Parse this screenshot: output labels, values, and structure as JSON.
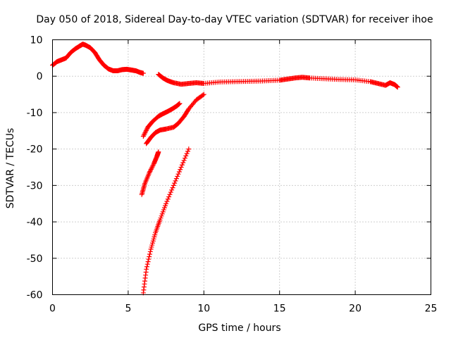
{
  "chart_data": {
    "type": "scatter",
    "title": "Day 050 of 2018, Sidereal Day-to-day VTEC variation (SDTVAR) for receiver ihoe",
    "xlabel": "GPS time / hours",
    "ylabel": "SDTVAR / TECUs",
    "xlim": [
      0,
      25
    ],
    "ylim": [
      -60,
      10
    ],
    "xticks": [
      0,
      5,
      10,
      15,
      20,
      25
    ],
    "yticks": [
      10,
      0,
      -10,
      -20,
      -30,
      -40,
      -50,
      -60
    ],
    "grid": true,
    "marker": "plus",
    "series_color": "#ff0000",
    "series": [
      {
        "name": "main-trace",
        "x": [
          0.0,
          0.3,
          0.6,
          0.9,
          1.2,
          1.5,
          1.8,
          2.0,
          2.2,
          2.5,
          2.8,
          3.1,
          3.4,
          3.7,
          4.0,
          4.3,
          4.6,
          4.9,
          5.2,
          5.5,
          5.8,
          6.0
        ],
        "y": [
          3.0,
          4.0,
          4.5,
          5.0,
          6.5,
          7.5,
          8.3,
          8.8,
          8.5,
          7.8,
          6.5,
          4.5,
          3.0,
          2.0,
          1.5,
          1.5,
          1.8,
          1.9,
          1.7,
          1.5,
          1.0,
          0.8
        ]
      },
      {
        "name": "main-trace-2",
        "x": [
          7.0,
          7.3,
          7.6,
          8.0,
          8.5,
          9.0,
          9.5,
          10.0,
          11.0,
          12.0,
          13.0,
          14.0,
          15.0,
          15.5,
          16.0,
          16.5,
          17.0,
          18.0,
          19.0,
          20.0,
          21.0,
          21.5,
          22.0,
          22.3,
          22.6,
          22.8
        ],
        "y": [
          0.5,
          -0.5,
          -1.2,
          -1.8,
          -2.2,
          -2.0,
          -1.8,
          -2.0,
          -1.6,
          -1.5,
          -1.4,
          -1.3,
          -1.1,
          -0.8,
          -0.5,
          -0.3,
          -0.5,
          -0.7,
          -0.9,
          -1.0,
          -1.5,
          -2.0,
          -2.5,
          -1.8,
          -2.3,
          -3.0
        ]
      },
      {
        "name": "arc-1",
        "x": [
          6.0,
          6.3,
          6.6,
          7.0,
          7.3,
          7.6,
          7.9,
          8.2,
          8.4
        ],
        "y": [
          -16.5,
          -14.0,
          -12.5,
          -11.0,
          -10.3,
          -9.7,
          -9.0,
          -8.2,
          -7.5
        ]
      },
      {
        "name": "arc-2",
        "x": [
          6.2,
          6.5,
          6.8,
          7.1,
          7.5,
          8.0,
          8.3,
          8.7,
          9.0,
          9.5,
          10.0
        ],
        "y": [
          -18.5,
          -16.8,
          -15.5,
          -14.8,
          -14.5,
          -14.0,
          -13.0,
          -11.0,
          -9.0,
          -6.5,
          -5.0
        ]
      },
      {
        "name": "arc-3",
        "x": [
          5.9,
          6.1,
          6.4,
          6.7,
          6.9,
          7.0
        ],
        "y": [
          -32.5,
          -29.5,
          -26.5,
          -24.0,
          -22.0,
          -20.8
        ]
      },
      {
        "name": "arc-4",
        "x": [
          6.0,
          6.2,
          6.5,
          6.8,
          7.1,
          7.5,
          8.0,
          8.5,
          9.0
        ],
        "y": [
          -59.5,
          -53.0,
          -47.5,
          -43.0,
          -39.5,
          -35.0,
          -30.0,
          -25.0,
          -20.0
        ]
      }
    ]
  }
}
